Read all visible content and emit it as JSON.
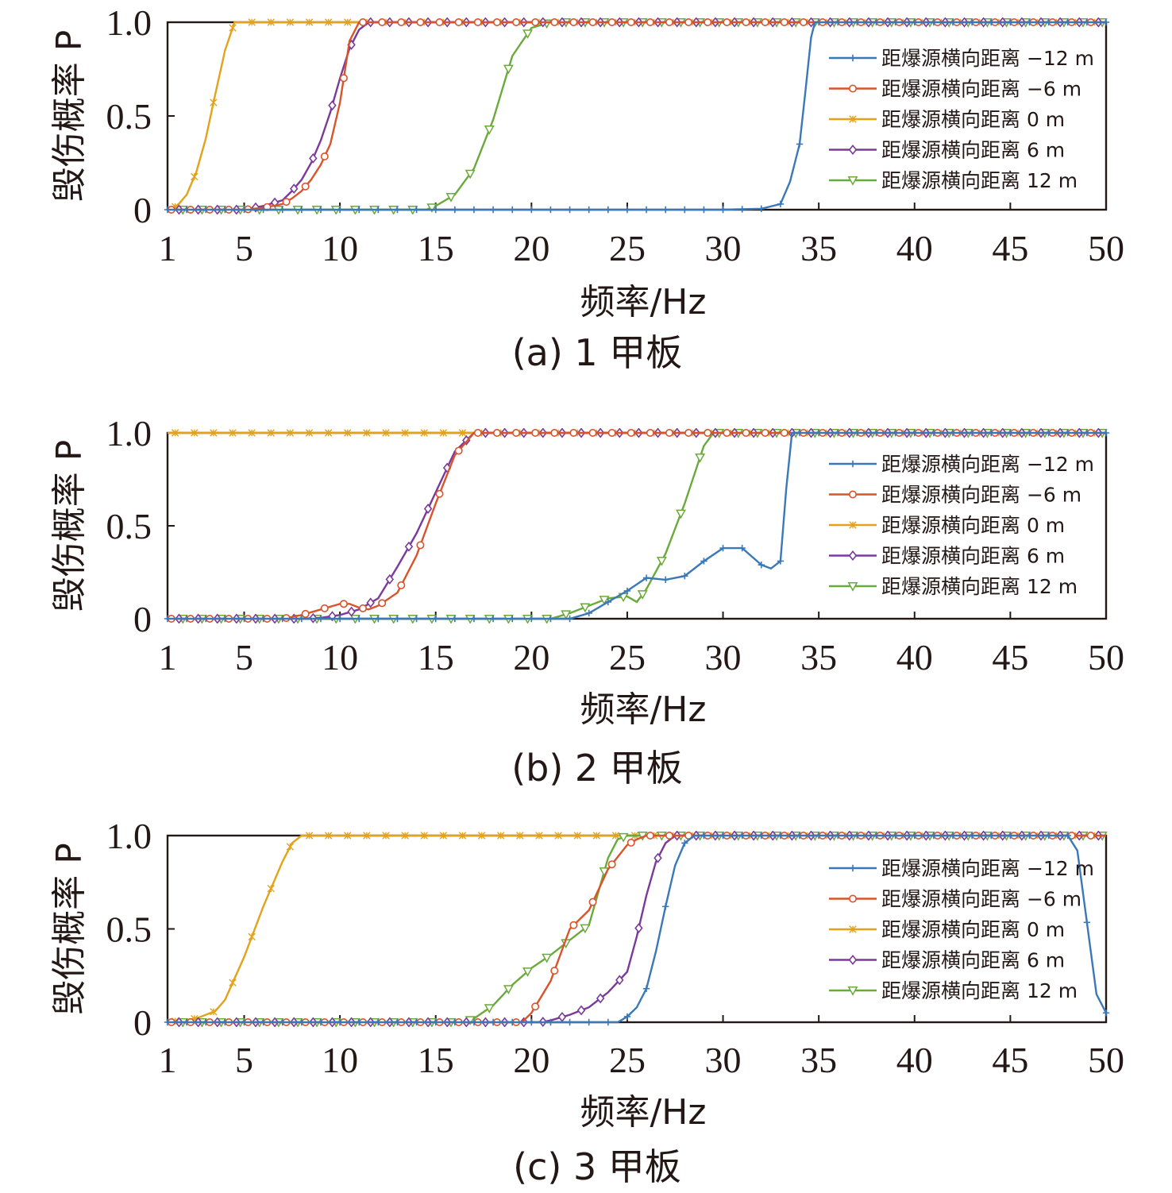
{
  "colors": {
    "series": [
      "#3a78b8",
      "#d9532b",
      "#e3a21a",
      "#7a3a9a",
      "#6aaa3a"
    ],
    "axis": "#231815"
  },
  "chart_data": [
    {
      "type": "line",
      "caption": "(a)  1 甲板",
      "xlabel": "频率/Hz",
      "ylabel": "毁伤概率 P",
      "xlim": [
        1,
        50
      ],
      "ylim": [
        0,
        1.0
      ],
      "xticks": [
        1,
        5,
        10,
        15,
        20,
        25,
        30,
        35,
        40,
        45,
        50
      ],
      "yticks": [
        0,
        0.5,
        1.0
      ],
      "ytick_labels": [
        "0",
        "0.5",
        "1.0"
      ],
      "legend_position": "right",
      "series": [
        {
          "name": "距爆源横向距离 −12 m",
          "marker": "plus",
          "x": [
            1,
            30,
            32,
            33,
            33.5,
            34,
            34.3,
            34.6,
            34.8,
            50
          ],
          "y": [
            0,
            0,
            0.005,
            0.03,
            0.15,
            0.35,
            0.63,
            0.92,
            1.0,
            1.0
          ]
        },
        {
          "name": "距爆源横向距离 −6 m",
          "marker": "circle",
          "x": [
            1,
            5,
            6,
            7,
            7.5,
            8,
            8.5,
            9,
            9.5,
            10,
            10.5,
            11,
            11.5,
            50
          ],
          "y": [
            0,
            0,
            0.01,
            0.03,
            0.06,
            0.1,
            0.16,
            0.24,
            0.35,
            0.57,
            0.9,
            1.0,
            1.0,
            1.0
          ]
        },
        {
          "name": "距爆源横向距离 0 m",
          "marker": "star",
          "x": [
            1,
            1.5,
            2,
            2.5,
            3,
            3.5,
            4,
            4.5,
            5,
            50
          ],
          "y": [
            0,
            0.02,
            0.08,
            0.2,
            0.38,
            0.62,
            0.85,
            1.0,
            1.0,
            1.0
          ]
        },
        {
          "name": "距爆源横向距离 6 m",
          "marker": "diamond",
          "x": [
            1,
            5,
            6,
            7,
            7.5,
            8,
            8.5,
            9,
            9.5,
            10,
            10.5,
            11,
            11.5,
            12,
            50
          ],
          "y": [
            0,
            0,
            0.02,
            0.05,
            0.1,
            0.16,
            0.25,
            0.37,
            0.52,
            0.7,
            0.86,
            0.96,
            1.0,
            1.0,
            1.0
          ]
        },
        {
          "name": "距爆源横向距离 12 m",
          "marker": "triangle",
          "x": [
            1,
            14.5,
            15,
            16,
            17,
            18,
            19,
            20,
            21,
            50
          ],
          "y": [
            0,
            0,
            0.02,
            0.08,
            0.22,
            0.48,
            0.82,
            0.97,
            1.0,
            1.0
          ]
        }
      ]
    },
    {
      "type": "line",
      "caption": "(b)  2 甲板",
      "xlabel": "频率/Hz",
      "ylabel": "毁伤概率 P",
      "xlim": [
        1,
        50
      ],
      "ylim": [
        0,
        1.0
      ],
      "xticks": [
        1,
        5,
        10,
        15,
        20,
        25,
        30,
        35,
        40,
        45,
        50
      ],
      "yticks": [
        0,
        0.5,
        1.0
      ],
      "ytick_labels": [
        "0",
        "0.5",
        "1.0"
      ],
      "legend_position": "right",
      "series": [
        {
          "name": "距爆源横向距离 −12 m",
          "marker": "plus",
          "x": [
            1,
            22,
            23,
            24,
            25,
            26,
            27,
            28,
            29,
            30,
            31,
            32,
            32.5,
            33,
            33.3,
            33.6,
            50
          ],
          "y": [
            0,
            0,
            0.03,
            0.09,
            0.15,
            0.22,
            0.21,
            0.23,
            0.31,
            0.38,
            0.38,
            0.29,
            0.27,
            0.31,
            0.7,
            1.0,
            1.0
          ]
        },
        {
          "name": "距爆源横向距离 −6 m",
          "marker": "circle",
          "x": [
            1,
            7,
            8,
            9,
            10,
            10.5,
            11,
            11.5,
            12,
            13,
            14,
            15,
            16,
            17,
            17.5,
            50
          ],
          "y": [
            0,
            0,
            0.02,
            0.05,
            0.08,
            0.08,
            0.06,
            0.05,
            0.07,
            0.14,
            0.34,
            0.62,
            0.88,
            1.0,
            1.0,
            1.0
          ]
        },
        {
          "name": "距爆源横向距离 0 m",
          "marker": "star",
          "x": [
            1,
            50
          ],
          "y": [
            1.0,
            1.0
          ]
        },
        {
          "name": "距爆源横向距离 6 m",
          "marker": "diamond",
          "x": [
            1,
            8,
            9,
            10,
            11,
            12,
            13,
            14,
            15,
            16,
            17,
            50
          ],
          "y": [
            0,
            0,
            0.005,
            0.02,
            0.05,
            0.11,
            0.28,
            0.46,
            0.68,
            0.9,
            1.0,
            1.0
          ]
        },
        {
          "name": "距爆源横向距离 12 m",
          "marker": "triangle",
          "x": [
            1,
            21,
            22,
            23,
            24,
            25,
            25.5,
            26,
            27,
            28,
            29,
            29.5,
            50
          ],
          "y": [
            0,
            0,
            0.03,
            0.07,
            0.11,
            0.12,
            0.09,
            0.16,
            0.35,
            0.62,
            0.93,
            1.0,
            1.0
          ]
        }
      ]
    },
    {
      "type": "line",
      "caption": "(c)  3 甲板",
      "xlabel": "频率/Hz",
      "ylabel": "毁伤概率 P",
      "xlim": [
        1,
        50
      ],
      "ylim": [
        0,
        1.0
      ],
      "xticks": [
        1,
        5,
        10,
        15,
        20,
        25,
        30,
        35,
        40,
        45,
        50
      ],
      "yticks": [
        0,
        0.5,
        1.0
      ],
      "ytick_labels": [
        "0",
        "0.5",
        "1.0"
      ],
      "legend_position": "right",
      "series": [
        {
          "name": "距爆源横向距离 −12 m",
          "marker": "plus",
          "x": [
            1,
            24.5,
            25,
            25.5,
            26,
            26.5,
            27,
            27.5,
            28,
            28.5,
            29,
            48,
            48.5,
            49.5,
            50
          ],
          "y": [
            0,
            0,
            0.03,
            0.08,
            0.18,
            0.38,
            0.62,
            0.84,
            0.96,
            1.0,
            1.0,
            1.0,
            0.92,
            0.15,
            0.05
          ]
        },
        {
          "name": "距爆源横向距离 −6 m",
          "marker": "circle",
          "x": [
            1,
            19.5,
            20,
            21,
            22,
            23,
            24,
            25,
            25.5,
            26,
            50
          ],
          "y": [
            0,
            0,
            0.05,
            0.22,
            0.5,
            0.6,
            0.82,
            0.95,
            0.98,
            1.0,
            1.0
          ]
        },
        {
          "name": "距爆源横向距离 0 m",
          "marker": "star",
          "x": [
            1,
            2.5,
            3.5,
            4,
            5,
            6,
            7,
            7.5,
            8,
            50
          ],
          "y": [
            0,
            0.02,
            0.06,
            0.12,
            0.35,
            0.62,
            0.86,
            0.96,
            1.0,
            1.0
          ]
        },
        {
          "name": "距爆源横向距离 6 m",
          "marker": "diamond",
          "x": [
            1,
            20.5,
            21,
            22,
            23,
            24,
            25,
            25.5,
            26,
            26.5,
            27,
            27.5,
            28,
            50
          ],
          "y": [
            0,
            0,
            0.01,
            0.04,
            0.08,
            0.16,
            0.27,
            0.46,
            0.68,
            0.86,
            0.96,
            1.0,
            1.0,
            1.0
          ]
        },
        {
          "name": "距爆源横向距离 12 m",
          "marker": "triangle",
          "x": [
            1,
            16.5,
            17,
            18,
            19,
            20,
            21,
            22,
            23,
            24,
            24.5,
            25,
            50
          ],
          "y": [
            0,
            0,
            0.02,
            0.09,
            0.2,
            0.29,
            0.36,
            0.44,
            0.52,
            0.88,
            0.98,
            1.0,
            1.0
          ]
        }
      ]
    }
  ]
}
